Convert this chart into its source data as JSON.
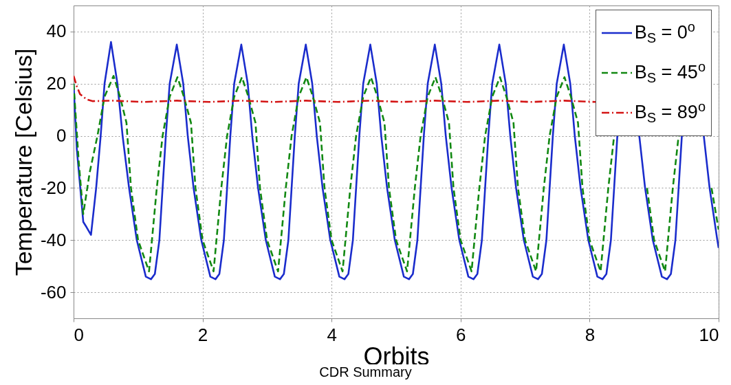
{
  "chart_data": {
    "type": "line",
    "xlabel": "Orbits",
    "ylabel": "Temperature [Celsius]",
    "xlim": [
      0,
      10
    ],
    "xticks": [
      0,
      2,
      4,
      6,
      8,
      10
    ],
    "ylim": [
      -70,
      50
    ],
    "yticks": [
      -60,
      -40,
      -20,
      0,
      20,
      40
    ],
    "grid": true,
    "legend": "top right",
    "annotations": [
      "CDR Summary"
    ],
    "series": [
      {
        "name": "B$_{S}$ = 0$^{o}$",
        "color": "#1a2ccc",
        "line_style": "solid",
        "x": [
          0,
          0.05,
          0.15,
          0.2,
          0.27,
          0.35,
          0.42,
          0.48,
          0.58,
          0.68,
          0.76,
          0.86,
          0.98,
          1.12,
          1.2,
          1.26,
          1.33,
          1.43,
          1.49,
          1.6,
          1.7,
          1.77,
          1.86,
          1.98,
          2.12,
          2.2,
          2.26,
          2.33,
          2.43,
          2.49,
          2.6,
          2.7,
          2.77,
          2.86,
          2.98,
          3.12,
          3.2,
          3.26,
          3.33,
          3.43,
          3.49,
          3.6,
          3.7,
          3.77,
          3.86,
          3.98,
          4.12,
          4.2,
          4.26,
          4.33,
          4.43,
          4.49,
          4.6,
          4.7,
          4.77,
          4.86,
          4.98,
          5.12,
          5.2,
          5.26,
          5.33,
          5.43,
          5.49,
          5.6,
          5.7,
          5.77,
          5.86,
          5.98,
          6.12,
          6.2,
          6.26,
          6.33,
          6.43,
          6.49,
          6.6,
          6.7,
          6.77,
          6.86,
          6.98,
          7.12,
          7.2,
          7.26,
          7.33,
          7.43,
          7.49,
          7.6,
          7.7,
          7.77,
          7.86,
          7.98,
          8.12,
          8.2,
          8.26,
          8.33,
          8.43,
          8.49,
          8.6,
          8.7,
          8.77,
          8.86,
          8.98,
          9.12,
          9.2,
          9.26,
          9.33,
          9.43,
          9.49,
          9.6,
          9.7,
          9.77,
          9.86,
          9.98,
          10
        ],
        "values": [
          20,
          -5,
          -33,
          -35,
          -38,
          -20,
          0,
          20,
          36,
          20,
          0,
          -20,
          -40,
          -54,
          -55,
          -53,
          -40,
          0,
          20,
          35,
          20,
          0,
          -20,
          -40,
          -54,
          -55,
          -53,
          -40,
          0,
          20,
          35,
          20,
          0,
          -20,
          -40,
          -54,
          -55,
          -53,
          -40,
          0,
          20,
          35,
          20,
          0,
          -20,
          -40,
          -54,
          -55,
          -53,
          -40,
          0,
          20,
          35,
          20,
          0,
          -20,
          -40,
          -54,
          -55,
          -53,
          -40,
          0,
          20,
          35,
          20,
          0,
          -20,
          -40,
          -54,
          -55,
          -53,
          -40,
          0,
          20,
          35,
          20,
          0,
          -20,
          -40,
          -54,
          -55,
          -53,
          -40,
          0,
          20,
          35,
          20,
          0,
          -20,
          -40,
          -54,
          -55,
          -53,
          -40,
          0,
          null,
          null,
          null,
          0,
          -20,
          -40,
          -54,
          -55,
          -53,
          -40,
          0,
          null,
          null,
          null,
          0,
          -20,
          -40,
          -43
        ]
      },
      {
        "name": "B$_{S}$ = 45$^{o}$",
        "color": "#118811",
        "line_style": "dashed",
        "x": [
          0,
          0.08,
          0.15,
          0.25,
          0.37,
          0.48,
          0.62,
          0.72,
          0.82,
          0.89,
          1.0,
          1.17,
          1.29,
          1.38,
          1.49,
          1.61,
          1.71,
          1.82,
          1.89,
          2.0,
          2.17,
          2.29,
          2.38,
          2.49,
          2.61,
          2.71,
          2.82,
          2.89,
          3.0,
          3.17,
          3.29,
          3.38,
          3.49,
          3.61,
          3.71,
          3.82,
          3.89,
          4.0,
          4.17,
          4.29,
          4.38,
          4.49,
          4.61,
          4.71,
          4.82,
          4.89,
          5.0,
          5.17,
          5.29,
          5.38,
          5.49,
          5.61,
          5.71,
          5.82,
          5.89,
          6.0,
          6.17,
          6.29,
          6.38,
          6.49,
          6.61,
          6.71,
          6.82,
          6.89,
          7.0,
          7.17,
          7.29,
          7.38,
          7.49,
          7.61,
          7.71,
          7.82,
          7.89,
          8.0,
          8.17,
          8.29,
          8.38,
          8.49,
          8.61,
          8.71,
          8.82,
          8.89,
          9.0,
          9.17,
          9.29,
          9.38,
          9.49,
          9.61,
          9.71,
          9.82,
          9.89,
          10
        ],
        "values": [
          20,
          -10,
          -30,
          -14,
          0,
          15,
          23,
          15,
          5,
          -20,
          -40,
          -52,
          -20,
          0,
          15,
          22.5,
          15,
          5,
          -20,
          -40,
          -52,
          -20,
          0,
          15,
          22.5,
          15,
          5,
          -20,
          -40,
          -52,
          -20,
          0,
          15,
          22.5,
          15,
          5,
          -20,
          -40,
          -52,
          -20,
          0,
          15,
          22.5,
          15,
          5,
          -20,
          -40,
          -52,
          -20,
          0,
          15,
          22.5,
          15,
          5,
          -20,
          -40,
          -52,
          -20,
          0,
          15,
          22.5,
          15,
          5,
          -20,
          -40,
          -52,
          -20,
          0,
          15,
          22.5,
          15,
          5,
          -20,
          -40,
          -52,
          -20,
          0,
          null,
          null,
          null,
          null,
          -20,
          -40,
          -52,
          -20,
          0,
          null,
          null,
          null,
          null,
          -20,
          -36
        ]
      },
      {
        "name": "B$_{S}$ = 89$^{o}$",
        "color": "#d41515",
        "line_style": "dashdot",
        "x": [
          0,
          0.05,
          0.1,
          0.2,
          0.3,
          0.6,
          1.1,
          1.6,
          2.1,
          2.6,
          3.1,
          3.6,
          4.1,
          4.6,
          5.1,
          5.6,
          6.1,
          6.6,
          7.1,
          7.6,
          8.1
        ],
        "values": [
          23,
          19,
          16,
          14,
          13.3,
          13.5,
          13,
          13.5,
          13,
          13.5,
          13,
          13.5,
          13,
          13.5,
          13,
          13.5,
          13,
          13.5,
          13,
          13.5,
          13
        ]
      }
    ]
  }
}
